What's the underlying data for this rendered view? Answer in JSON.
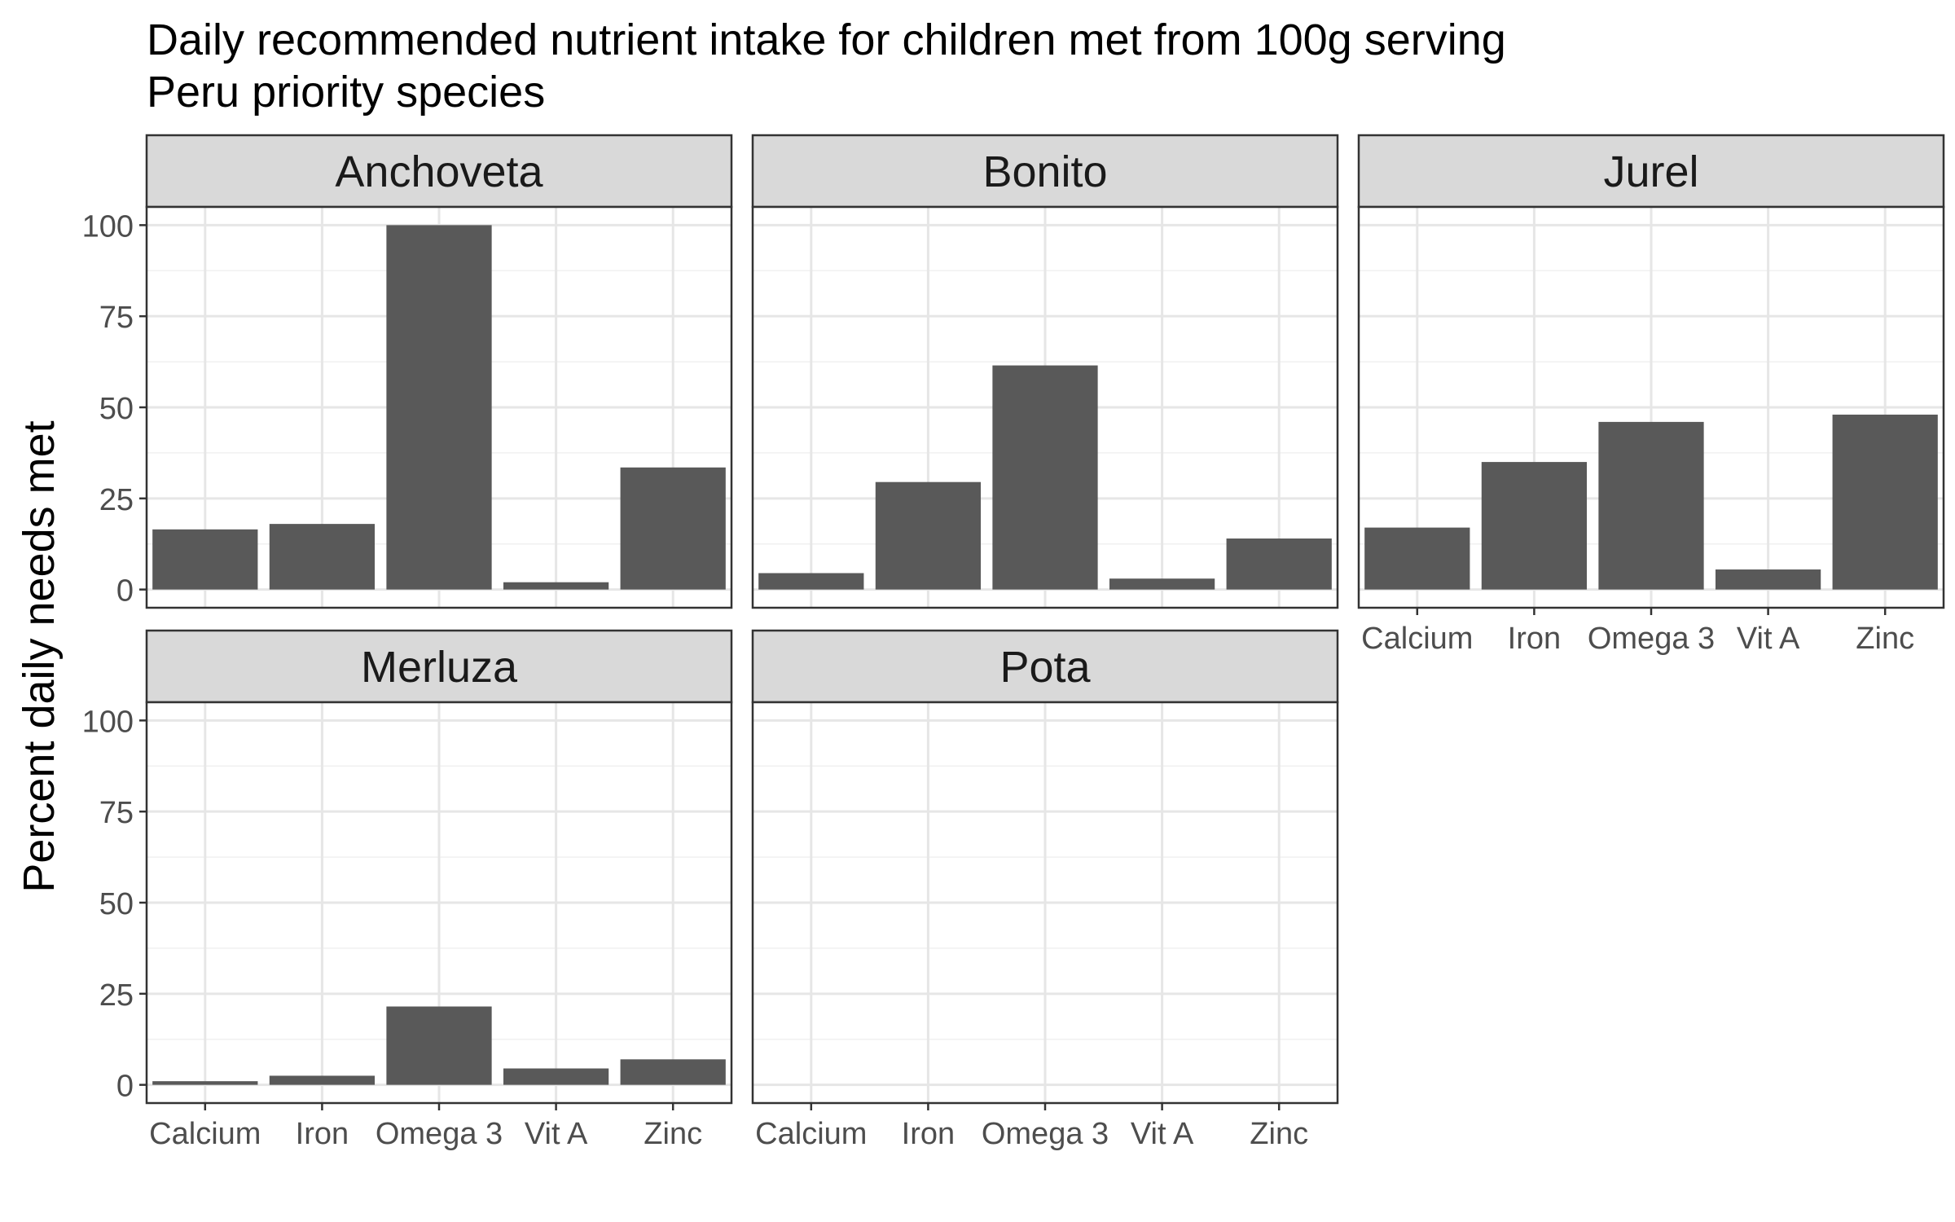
{
  "chart_data": {
    "type": "bar",
    "title": "Daily recommended nutrient intake for children met from 100g serving",
    "subtitle": "Peru priority species",
    "xlabel": "",
    "ylabel": "Percent daily needs met",
    "categories": [
      "Calcium",
      "Iron",
      "Omega 3",
      "Vit A",
      "Zinc"
    ],
    "ylim": [
      -5,
      105
    ],
    "yticks": [
      0,
      25,
      50,
      75,
      100
    ],
    "grid": true,
    "legend": "none",
    "bar_color": "#595959",
    "strip_color": "#d9d9d9",
    "panels": [
      {
        "name": "Anchoveta",
        "values": [
          16.5,
          18,
          100,
          2,
          33.5
        ]
      },
      {
        "name": "Bonito",
        "values": [
          4.5,
          29.5,
          61.5,
          3,
          14
        ]
      },
      {
        "name": "Jurel",
        "values": [
          17,
          35,
          46,
          5.5,
          48
        ]
      },
      {
        "name": "Merluza",
        "values": [
          1,
          2.5,
          21.5,
          4.5,
          7
        ]
      },
      {
        "name": "Pota",
        "values": [
          null,
          null,
          null,
          null,
          null
        ]
      }
    ]
  }
}
